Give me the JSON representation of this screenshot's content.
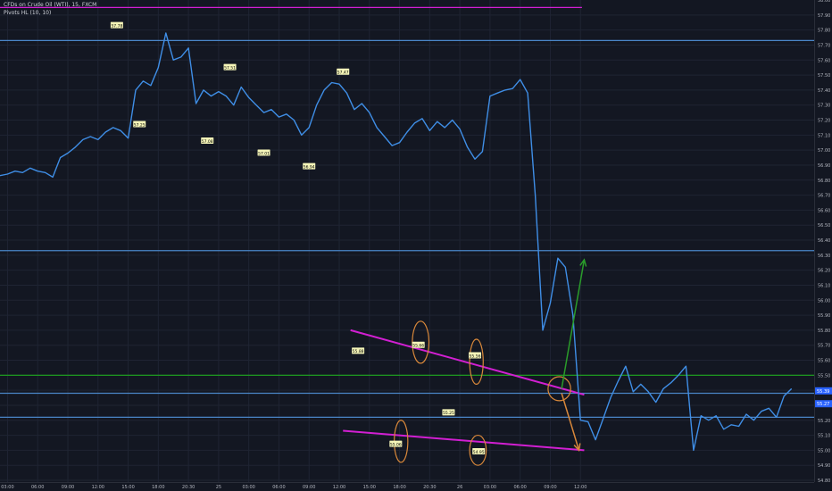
{
  "header": {
    "title": "CFDs on Crude Oil (WTI), 15, FXCM",
    "indicator": "Pivots HL (10, 10)"
  },
  "colors": {
    "background": "#131722",
    "grid": "#1f2433",
    "price_line": "#3f8ee6",
    "trendline": "#d21fd2",
    "support_blue": "#4a86c8",
    "green_level": "#1ea81e",
    "orange_mark": "#d9883a",
    "green_arrow": "#2a9c2a"
  },
  "chart_data": {
    "type": "line",
    "title": "",
    "xlabel": "",
    "ylabel": "",
    "ylim": [
      54.8,
      58.0
    ],
    "xlim": [
      0,
      108
    ],
    "x_unit": "15-minute bars",
    "series": [
      {
        "x": [
          0,
          1,
          2,
          3,
          4,
          5,
          6,
          7,
          8,
          9,
          10,
          11,
          12,
          13,
          14,
          15,
          16,
          17,
          18,
          19,
          20,
          21,
          22,
          23,
          24,
          25,
          26,
          27,
          28,
          29,
          30,
          31,
          32,
          33,
          34,
          35,
          36,
          37,
          38,
          39,
          40,
          41,
          42,
          43,
          44,
          45,
          46,
          47,
          48,
          49,
          50,
          51,
          52,
          53,
          54,
          55,
          56,
          57,
          58,
          59,
          60,
          61,
          62,
          63,
          64,
          65,
          66,
          67,
          68,
          69,
          70,
          71,
          72,
          73,
          74,
          75,
          76,
          77,
          78,
          79,
          80,
          81,
          82,
          83,
          84,
          85,
          86,
          87,
          88,
          89,
          90,
          91,
          92,
          93,
          94,
          95,
          96,
          97,
          98,
          99,
          100,
          101,
          102,
          103,
          104,
          105
        ],
        "y": [
          56.83,
          56.84,
          56.86,
          56.85,
          56.88,
          56.86,
          56.85,
          56.82,
          56.95,
          56.98,
          57.02,
          57.07,
          57.09,
          57.07,
          57.12,
          57.15,
          57.13,
          57.08,
          57.4,
          57.46,
          57.43,
          57.55,
          57.78,
          57.6,
          57.62,
          57.68,
          57.31,
          57.4,
          57.36,
          57.39,
          57.36,
          57.3,
          57.42,
          57.35,
          57.3,
          57.25,
          57.27,
          57.22,
          57.24,
          57.2,
          57.1,
          57.15,
          57.3,
          57.4,
          57.45,
          57.44,
          57.38,
          57.27,
          57.31,
          57.25,
          57.15,
          57.09,
          57.03,
          57.05,
          57.12,
          57.18,
          57.21,
          57.13,
          57.19,
          57.15,
          57.2,
          57.14,
          57.02,
          56.94,
          56.99,
          57.36,
          57.38,
          57.4,
          57.41,
          57.47,
          57.38,
          56.7,
          55.8,
          55.98,
          56.28,
          56.22,
          55.9,
          55.2,
          55.19,
          55.07,
          55.21,
          55.35,
          55.46,
          55.56,
          55.39,
          55.44,
          55.39,
          55.32,
          55.41,
          55.45,
          55.5,
          55.56,
          55.0,
          55.23,
          55.2,
          55.23,
          55.14,
          55.17,
          55.16,
          55.24,
          55.2,
          55.26,
          55.28,
          55.22,
          55.36,
          55.41
        ],
        "color": "#3f8ee6"
      }
    ],
    "x_ticks": [
      {
        "x": 1,
        "label": "03:00"
      },
      {
        "x": 5,
        "label": "06:00"
      },
      {
        "x": 9,
        "label": "09:00"
      },
      {
        "x": 13,
        "label": "12:00"
      },
      {
        "x": 17,
        "label": "15:00"
      },
      {
        "x": 21,
        "label": "18:00"
      },
      {
        "x": 25,
        "label": "20:30"
      },
      {
        "x": 29,
        "label": "25"
      },
      {
        "x": 33,
        "label": "03:00"
      },
      {
        "x": 37,
        "label": "06:00"
      },
      {
        "x": 41,
        "label": "09:00"
      },
      {
        "x": 45,
        "label": "12:00"
      },
      {
        "x": 49,
        "label": "15:00"
      },
      {
        "x": 53,
        "label": "18:00"
      },
      {
        "x": 57,
        "label": "20:30"
      },
      {
        "x": 61,
        "label": "26"
      },
      {
        "x": 65,
        "label": "03:00"
      },
      {
        "x": 69,
        "label": "06:00"
      },
      {
        "x": 73,
        "label": "09:00"
      },
      {
        "x": 77,
        "label": "12:00"
      }
    ],
    "y_ticks": [
      "58.00",
      "57.90",
      "57.80",
      "57.70",
      "57.60",
      "57.50",
      "57.40",
      "57.30",
      "57.20",
      "57.10",
      "57.00",
      "56.90",
      "56.80",
      "56.70",
      "56.60",
      "56.50",
      "56.40",
      "56.30",
      "56.20",
      "56.10",
      "56.00",
      "55.90",
      "55.80",
      "55.70",
      "55.60",
      "55.50",
      "55.40",
      "55.30",
      "55.20",
      "55.10",
      "55.00",
      "54.90",
      "54.80"
    ],
    "horizontal_levels": [
      {
        "y": 57.95,
        "color": "#d21fd2"
      },
      {
        "y": 57.73,
        "color": "#4a86c8"
      },
      {
        "y": 56.33,
        "color": "#4a86c8"
      },
      {
        "y": 55.5,
        "color": "#1ea81e"
      },
      {
        "y": 55.38,
        "color": "#4a86c8"
      },
      {
        "y": 55.22,
        "color": "#4a86c8"
      }
    ],
    "trendlines": [
      {
        "x1": 46.5,
        "y1": 55.8,
        "x2": 77.5,
        "y2": 55.37,
        "color": "#d21fd2"
      },
      {
        "x1": 45.5,
        "y1": 55.13,
        "x2": 77.5,
        "y2": 55.0,
        "color": "#d21fd2"
      }
    ],
    "pivot_labels": [
      {
        "x": 15.5,
        "y": 57.83,
        "text": "57.78"
      },
      {
        "x": 18.5,
        "y": 57.17,
        "text": "57.25"
      },
      {
        "x": 30.5,
        "y": 57.55,
        "text": "57.51"
      },
      {
        "x": 27.5,
        "y": 57.06,
        "text": "57.08"
      },
      {
        "x": 35.0,
        "y": 56.98,
        "text": "57.01"
      },
      {
        "x": 45.5,
        "y": 57.52,
        "text": "57.47"
      },
      {
        "x": 41.0,
        "y": 56.89,
        "text": "56.94"
      },
      {
        "x": 47.5,
        "y": 55.66,
        "text": "55.88"
      },
      {
        "x": 55.5,
        "y": 55.7,
        "text": "55.66"
      },
      {
        "x": 52.5,
        "y": 55.04,
        "text": "55.06"
      },
      {
        "x": 59.5,
        "y": 55.25,
        "text": "55.25"
      },
      {
        "x": 63.0,
        "y": 55.63,
        "text": "55.56"
      },
      {
        "x": 63.5,
        "y": 54.99,
        "text": "54.95"
      }
    ],
    "price_tags": [
      {
        "y": 55.39,
        "text": "55.39",
        "color": "#2962ff"
      },
      {
        "y": 55.34,
        "text": "55.27",
        "color": "#2962ff"
      }
    ],
    "arrows": [
      {
        "x1": 74.5,
        "y1": 55.41,
        "x2": 77.5,
        "y2": 56.27,
        "color": "#2a9c2a"
      },
      {
        "x1": 74.5,
        "y1": 55.38,
        "x2": 76.8,
        "y2": 55.0,
        "color": "#d9883a"
      }
    ],
    "ellipses": [
      {
        "x": 55.8,
        "y": 55.72,
        "rx": 1.1,
        "ry": 0.14
      },
      {
        "x": 63.2,
        "y": 55.59,
        "rx": 0.9,
        "ry": 0.15
      },
      {
        "x": 53.2,
        "y": 55.06,
        "rx": 0.9,
        "ry": 0.14
      },
      {
        "x": 63.4,
        "y": 55.0,
        "rx": 1.1,
        "ry": 0.1
      },
      {
        "x": 74.2,
        "y": 55.41,
        "rx": 1.5,
        "ry": 0.08
      }
    ],
    "grid": true,
    "legend": "none"
  }
}
